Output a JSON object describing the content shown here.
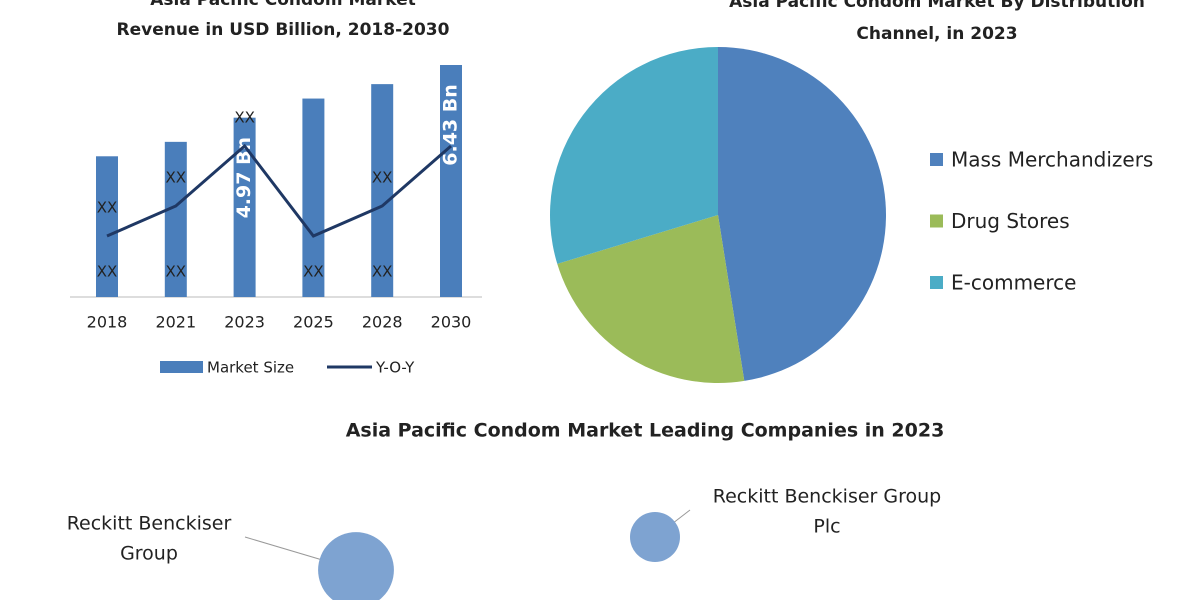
{
  "chart_data": [
    {
      "type": "bar_line",
      "title": [
        "Asia Pacific Condom Market",
        "Revenue in USD Billion, 2018-2030"
      ],
      "categories": [
        "2018",
        "2021",
        "2023",
        "2025",
        "2028",
        "2030"
      ],
      "series": [
        {
          "name": "Market Size",
          "type": "bar",
          "color": "#4a7ebb",
          "values": [
            3.9,
            4.3,
            4.97,
            5.5,
            5.9,
            6.43
          ],
          "value_labels": [
            "XX",
            "XX",
            "4.97 Bn",
            "XX",
            "XX",
            "6.43 Bn"
          ]
        },
        {
          "name": "Y-O-Y",
          "type": "line",
          "color": "#1f3864",
          "values": [
            4,
            5,
            7,
            4,
            5,
            7
          ],
          "value_labels": [
            "XX",
            "XX",
            "XX",
            null,
            "XX",
            null
          ]
        }
      ]
    },
    {
      "type": "pie",
      "title": [
        "Asia Pacific Condom Market By Distribution",
        "Channel, in 2023"
      ],
      "categories": [
        "Mass Merchandizers",
        "Drug Stores",
        "E-commerce"
      ],
      "values": [
        47.5,
        22.8,
        29.7
      ],
      "colors": [
        "#4f81bd",
        "#9bbb59",
        "#4bacc6"
      ]
    },
    {
      "type": "bubble",
      "title": "Asia Pacific Condom Market Leading Companies in 2023",
      "labels": [
        [
          "Reckitt Benckiser",
          "Group"
        ],
        [
          "Reckitt Benckiser Group",
          "Plc"
        ]
      ],
      "values": [
        2.3,
        1.0
      ],
      "color": "#7ea3d1"
    }
  ]
}
